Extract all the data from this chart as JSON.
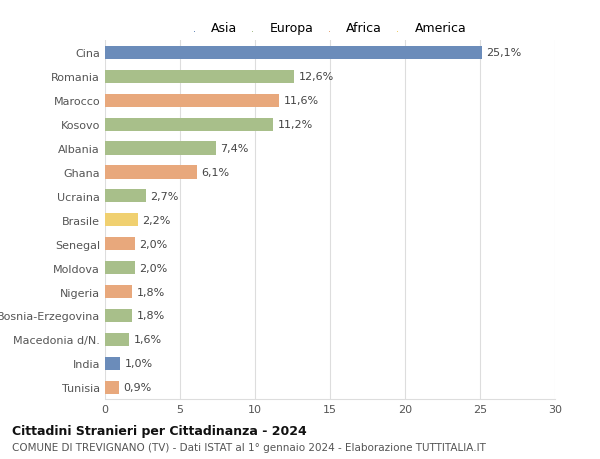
{
  "countries": [
    "Cina",
    "Romania",
    "Marocco",
    "Kosovo",
    "Albania",
    "Ghana",
    "Ucraina",
    "Brasile",
    "Senegal",
    "Moldova",
    "Nigeria",
    "Bosnia-Erzegovina",
    "Macedonia d/N.",
    "India",
    "Tunisia"
  ],
  "values": [
    25.1,
    12.6,
    11.6,
    11.2,
    7.4,
    6.1,
    2.7,
    2.2,
    2.0,
    2.0,
    1.8,
    1.8,
    1.6,
    1.0,
    0.9
  ],
  "labels": [
    "25,1%",
    "12,6%",
    "11,6%",
    "11,2%",
    "7,4%",
    "6,1%",
    "2,7%",
    "2,2%",
    "2,0%",
    "2,0%",
    "1,8%",
    "1,8%",
    "1,6%",
    "1,0%",
    "0,9%"
  ],
  "continents": [
    "Asia",
    "Europa",
    "Africa",
    "Europa",
    "Europa",
    "Africa",
    "Europa",
    "America",
    "Africa",
    "Europa",
    "Africa",
    "Europa",
    "Europa",
    "Asia",
    "Africa"
  ],
  "colors": {
    "Asia": "#6b8cba",
    "Europa": "#a8bf8a",
    "Africa": "#e8a87c",
    "America": "#f0d070"
  },
  "legend_order": [
    "Asia",
    "Europa",
    "Africa",
    "America"
  ],
  "title1": "Cittadini Stranieri per Cittadinanza - 2024",
  "title2": "COMUNE DI TREVIGNANO (TV) - Dati ISTAT al 1° gennaio 2024 - Elaborazione TUTTITALIA.IT",
  "xlim": [
    0,
    30
  ],
  "xticks": [
    0,
    5,
    10,
    15,
    20,
    25,
    30
  ],
  "background_color": "#ffffff",
  "grid_color": "#dddddd",
  "bar_height": 0.55,
  "label_fontsize": 8,
  "tick_fontsize": 8,
  "legend_fontsize": 9,
  "title1_fontsize": 9,
  "title2_fontsize": 7.5
}
